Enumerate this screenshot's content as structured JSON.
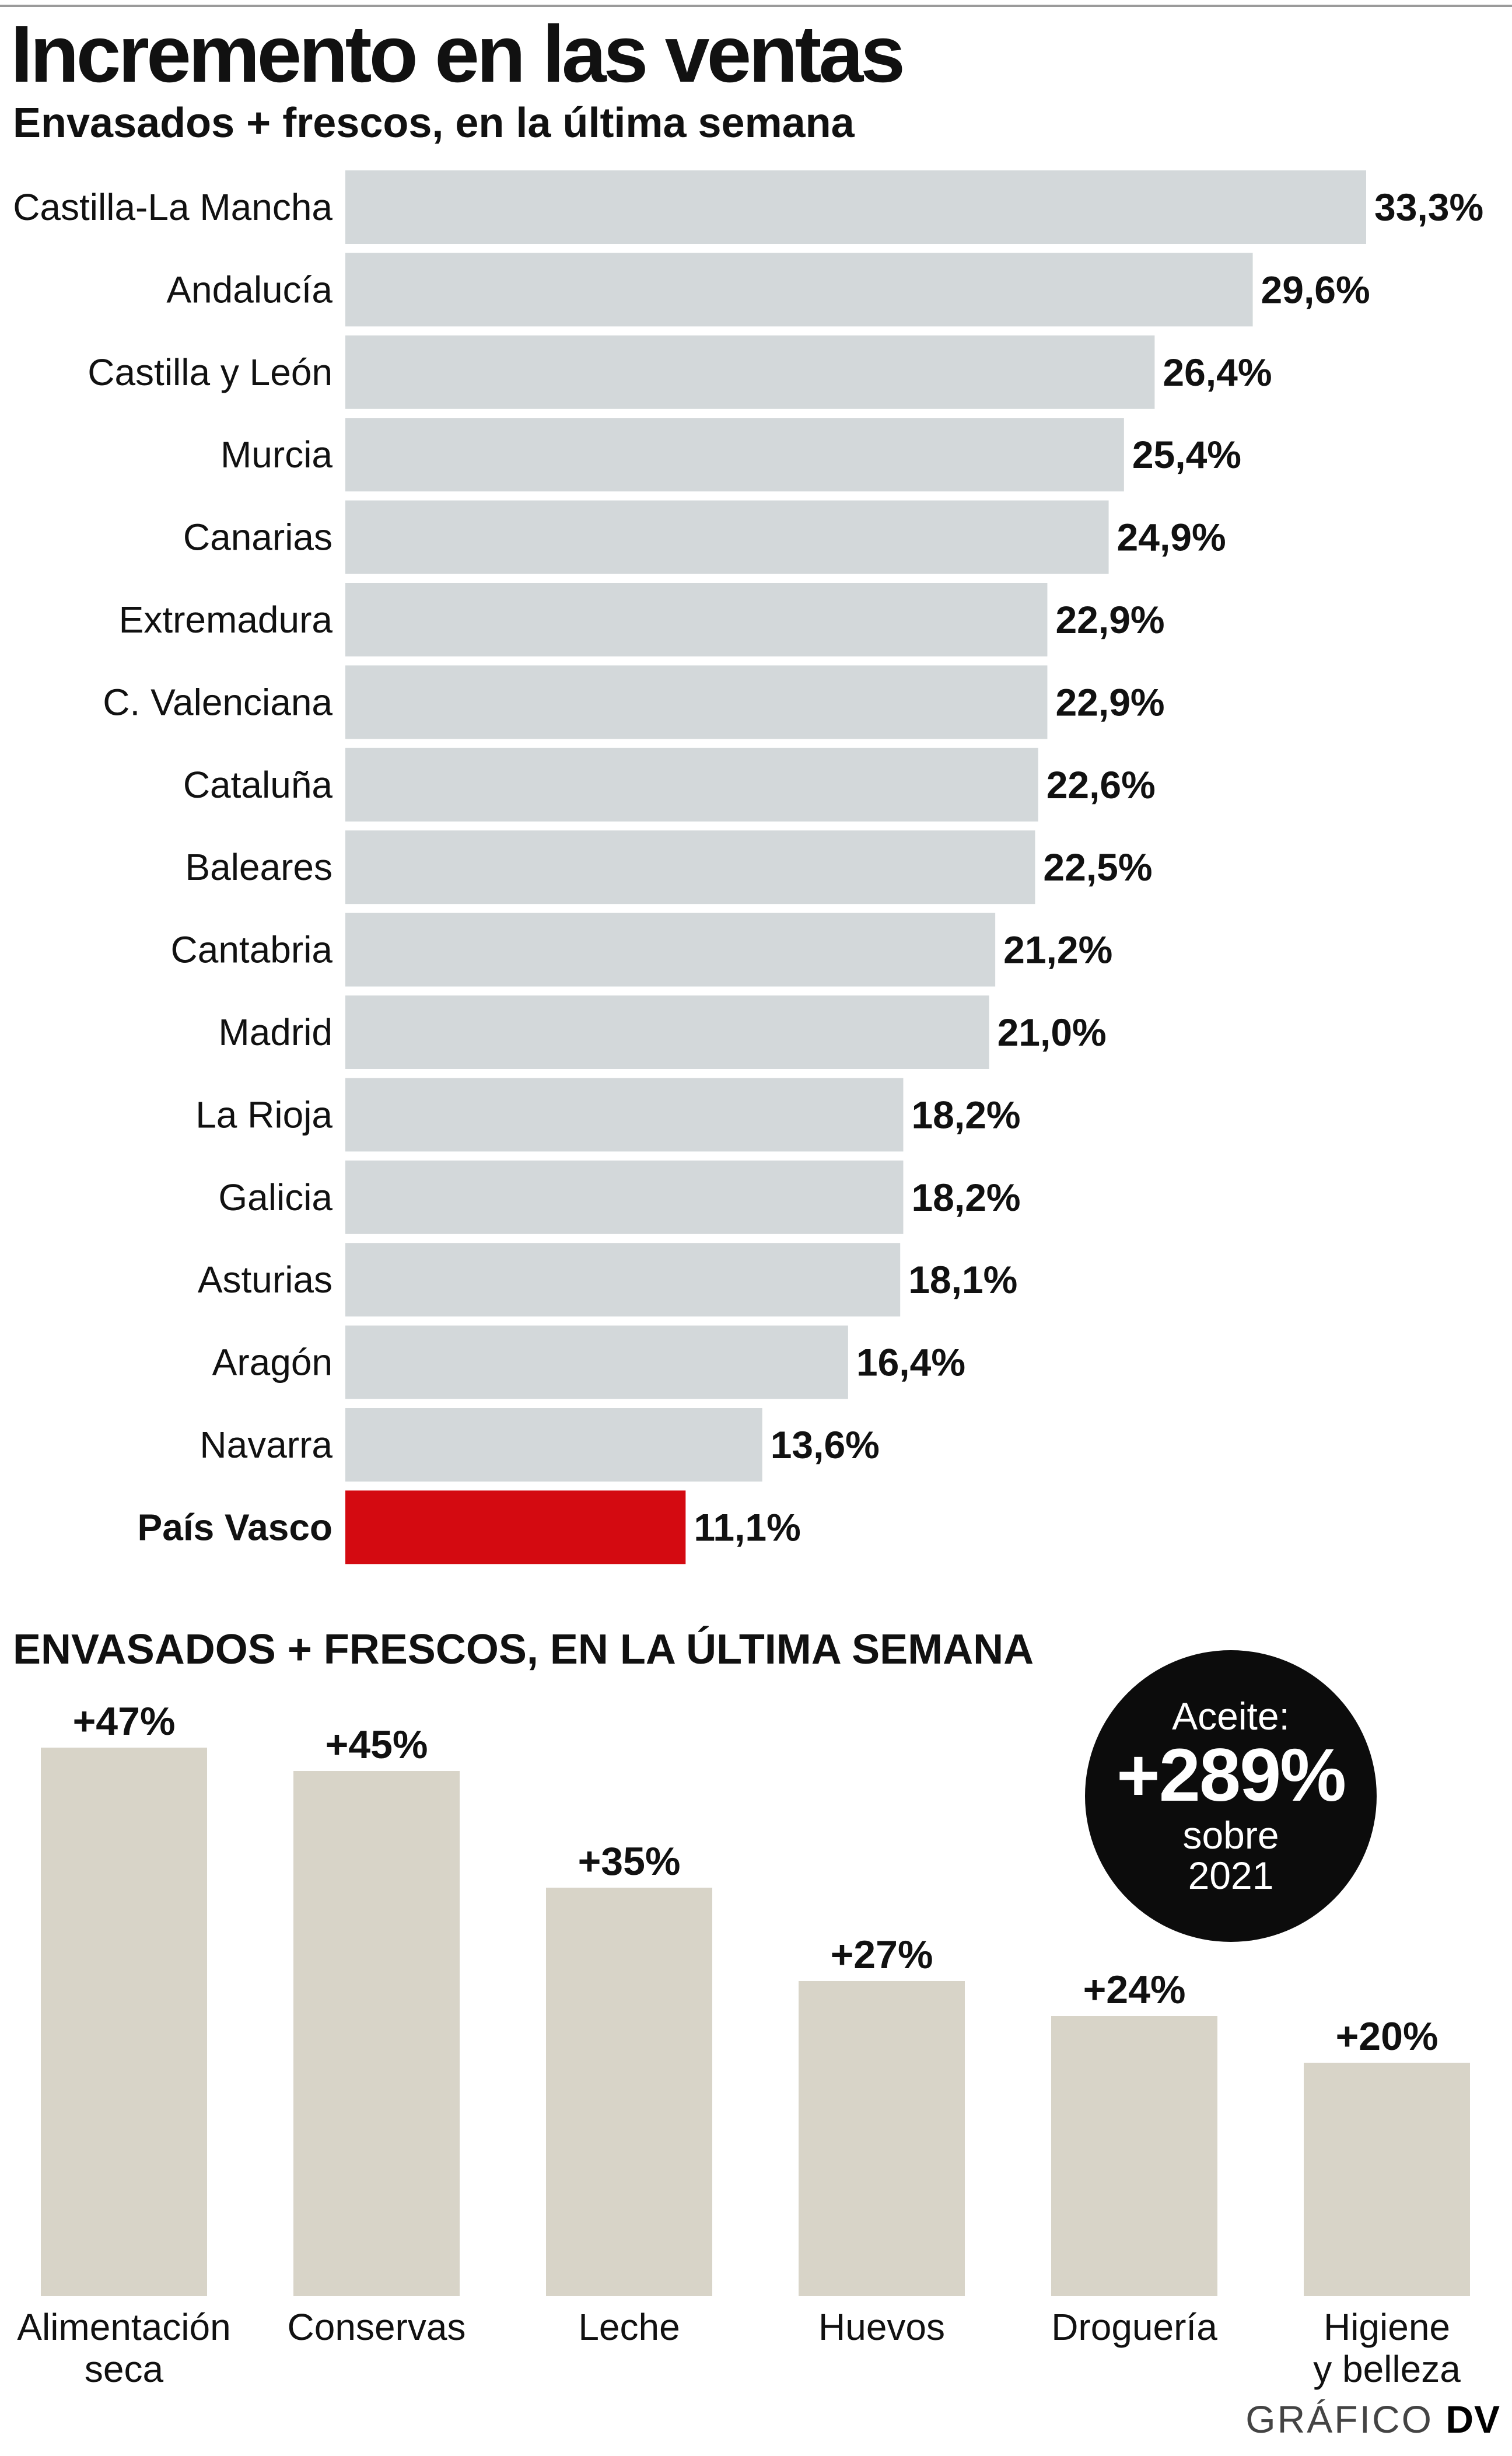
{
  "title": "Incremento en las ventas",
  "subtitle": "Envasados + frescos, en la última semana",
  "section_title": "ENVASADOS + FRESCOS, EN LA ÚLTIMA SEMANA",
  "highlight": {
    "label": "Aceite:",
    "value": "+289%",
    "note": "sobre 2021"
  },
  "credit": {
    "prefix": "GRÁFICO",
    "brand": "DV"
  },
  "colors": {
    "bar_gray": "#d3d8da",
    "bar_highlight": "#d40a11",
    "product_bar": "#d8d4c8",
    "circle": "#0c0c0c"
  },
  "chart_data": [
    {
      "type": "bar",
      "orientation": "horizontal",
      "title": "Incremento en las ventas",
      "subtitle": "Envasados + frescos, en la última semana",
      "categories": [
        "Castilla-La Mancha",
        "Andalucía",
        "Castilla y León",
        "Murcia",
        "Canarias",
        "Extremadura",
        "C. Valenciana",
        "Cataluña",
        "Baleares",
        "Cantabria",
        "Madrid",
        "La Rioja",
        "Galicia",
        "Asturias",
        "Aragón",
        "Navarra",
        "País Vasco"
      ],
      "values": [
        33.3,
        29.6,
        26.4,
        25.4,
        24.9,
        22.9,
        22.9,
        22.6,
        22.5,
        21.2,
        21.0,
        18.2,
        18.2,
        18.1,
        16.4,
        13.6,
        11.1
      ],
      "value_labels": [
        "33,3%",
        "29,6%",
        "26,4%",
        "25,4%",
        "24,9%",
        "22,9%",
        "22,9%",
        "22,6%",
        "22,5%",
        "21,2%",
        "21,0%",
        "18,2%",
        "18,2%",
        "18,1%",
        "16,4%",
        "13,6%",
        "11,1%"
      ],
      "highlighted": "País Vasco",
      "xlim": [
        0,
        33.3
      ],
      "grid": false,
      "legend": "none"
    },
    {
      "type": "bar",
      "orientation": "vertical",
      "title": "ENVASADOS + FRESCOS, EN LA ÚLTIMA SEMANA",
      "categories": [
        "Alimentación seca",
        "Conservas",
        "Leche",
        "Huevos",
        "Droguería",
        "Higiene y belleza"
      ],
      "category_lines": [
        [
          "Alimentación",
          "seca"
        ],
        [
          "Conservas"
        ],
        [
          "Leche"
        ],
        [
          "Huevos"
        ],
        [
          "Droguería"
        ],
        [
          "Higiene",
          "y belleza"
        ]
      ],
      "values": [
        47,
        45,
        35,
        27,
        24,
        20
      ],
      "value_labels": [
        "+47%",
        "+45%",
        "+35%",
        "+27%",
        "+24%",
        "+20%"
      ],
      "ylim": [
        0,
        47
      ],
      "grid": false,
      "legend": "none"
    }
  ]
}
